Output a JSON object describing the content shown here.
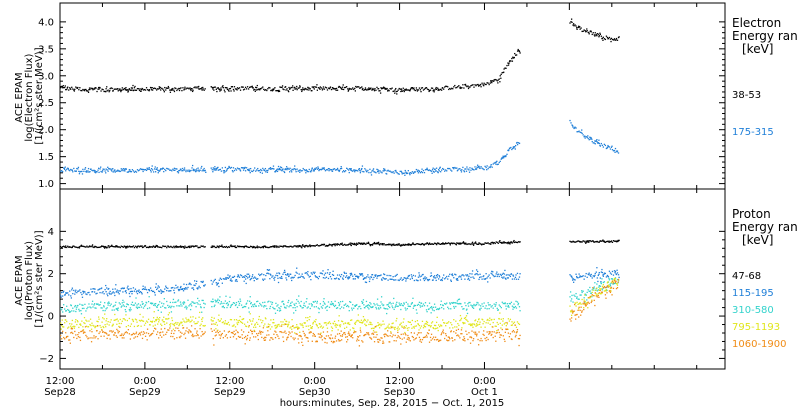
{
  "chart_data": [
    {
      "type": "scatter",
      "ylabel": "ACE EPAM\nlog(Electron Flux)\n[1/(cm²s ster MeV)]",
      "ylim": [
        0.9,
        4.35
      ],
      "yticks": [
        1.0,
        1.5,
        2.0,
        2.5,
        3.0,
        3.5,
        4.0
      ],
      "ytick_labels": [
        "1.0",
        "1.5",
        "2.0",
        "2.5",
        "3.0",
        "3.5",
        "4.0"
      ],
      "legend_title_lines": [
        "Electron",
        "Energy ran",
        "[keV]"
      ],
      "legend_placement": "right",
      "series": [
        {
          "name": "38-53",
          "color": "#000000",
          "x": [
            0,
            6,
            12,
            18,
            24,
            30,
            36,
            42,
            48,
            54,
            60,
            62,
            63.5,
            65,
            66,
            67,
            72,
            73,
            74,
            75,
            76,
            77,
            78,
            79
          ],
          "y": [
            2.78,
            2.75,
            2.76,
            2.77,
            2.78,
            2.77,
            2.77,
            2.78,
            2.75,
            2.78,
            2.85,
            2.95,
            3.3,
            3.5,
            null,
            null,
            4.0,
            3.9,
            3.85,
            3.8,
            3.76,
            3.72,
            3.7,
            3.7
          ]
        },
        {
          "name": "175-315",
          "color": "#1f7fd8",
          "x": [
            0,
            6,
            12,
            18,
            24,
            30,
            36,
            42,
            48,
            54,
            60,
            62,
            63.5,
            65,
            66,
            67,
            72,
            73,
            74,
            75,
            76,
            77,
            78,
            79
          ],
          "y": [
            1.27,
            1.25,
            1.26,
            1.27,
            1.28,
            1.26,
            1.27,
            1.26,
            1.22,
            1.27,
            1.3,
            1.4,
            1.65,
            1.8,
            null,
            null,
            2.15,
            2.0,
            1.9,
            1.82,
            1.75,
            1.7,
            1.65,
            1.6
          ]
        }
      ]
    },
    {
      "type": "scatter",
      "ylabel": "ACE EPAM\nlog(Proton Flux)\n[1/(cm²s ster MeV)]",
      "ylim": [
        -2.5,
        6.0
      ],
      "yticks": [
        -2,
        0,
        2,
        4
      ],
      "ytick_labels": [
        "−2",
        "0",
        "2",
        "4"
      ],
      "legend_title_lines": [
        "Proton",
        "Energy ran",
        "[keV]"
      ],
      "legend_placement": "right",
      "series": [
        {
          "name": "47-68",
          "color": "#000000",
          "x": [
            0,
            6,
            12,
            18,
            24,
            30,
            36,
            42,
            48,
            54,
            60,
            62,
            65,
            66,
            67,
            72,
            79
          ],
          "y": [
            3.3,
            3.3,
            3.3,
            3.3,
            3.3,
            3.3,
            3.35,
            3.45,
            3.4,
            3.45,
            3.45,
            3.5,
            3.5,
            null,
            null,
            3.55,
            3.55
          ]
        },
        {
          "name": "115-195",
          "color": "#1f7fd8",
          "x": [
            0,
            6,
            12,
            18,
            24,
            30,
            36,
            42,
            48,
            54,
            60,
            62,
            65,
            66,
            67,
            72,
            79
          ],
          "y": [
            1.1,
            1.2,
            1.25,
            1.4,
            1.8,
            1.95,
            1.95,
            1.9,
            1.85,
            1.85,
            1.9,
            1.95,
            1.9,
            null,
            null,
            1.85,
            2.05
          ]
        },
        {
          "name": "310-580",
          "color": "#33d3cc",
          "x": [
            0,
            6,
            12,
            18,
            24,
            30,
            36,
            42,
            48,
            54,
            60,
            62,
            65,
            66,
            67,
            72,
            75,
            79
          ],
          "y": [
            0.4,
            0.45,
            0.55,
            0.6,
            0.6,
            0.55,
            0.55,
            0.55,
            0.5,
            0.5,
            0.5,
            0.5,
            0.55,
            null,
            null,
            0.8,
            1.2,
            1.8
          ]
        },
        {
          "name": "795-1193",
          "color": "#e0e61c",
          "x": [
            0,
            6,
            12,
            18,
            24,
            30,
            36,
            42,
            48,
            54,
            60,
            62,
            65,
            66,
            67,
            72,
            75,
            79
          ],
          "y": [
            -0.35,
            -0.3,
            -0.25,
            -0.2,
            -0.3,
            -0.3,
            -0.35,
            -0.35,
            -0.4,
            -0.35,
            -0.3,
            -0.3,
            -0.3,
            null,
            null,
            0.3,
            1.0,
            1.75
          ]
        },
        {
          "name": "1060-1900",
          "color": "#f08c16",
          "x": [
            0,
            6,
            12,
            18,
            24,
            30,
            36,
            42,
            48,
            54,
            60,
            62,
            65,
            66,
            67,
            72,
            75,
            79
          ],
          "y": [
            -0.9,
            -0.85,
            -0.8,
            -0.75,
            -0.85,
            -0.9,
            -0.95,
            -0.95,
            -1.0,
            -0.95,
            -0.9,
            -0.85,
            -0.8,
            null,
            null,
            0.0,
            0.8,
            1.65
          ]
        }
      ]
    }
  ],
  "x_axis": {
    "unit": "hours since Sep. 28, 2015 12:00",
    "xlim": [
      0,
      94
    ],
    "ticks": [
      0,
      12,
      24,
      36,
      48,
      60,
      72
    ],
    "tick_time_labels": [
      "12:00",
      "0:00",
      "12:00",
      "0:00",
      "12:00",
      "0:00"
    ],
    "tick_date_labels": [
      "Sep28",
      "Sep29",
      "Sep29",
      "Sep30",
      "Sep30",
      "Oct 1"
    ],
    "tick_label_positions": [
      0,
      12,
      24,
      36,
      48,
      60
    ],
    "minor_ticks": [
      6,
      18,
      30,
      42,
      54,
      66,
      78,
      84,
      90
    ],
    "xlabel": "hours:minutes, Sep. 28, 2015 − Oct. 1, 2015"
  },
  "colors": {
    "axis": "#000000",
    "background": "#ffffff"
  }
}
